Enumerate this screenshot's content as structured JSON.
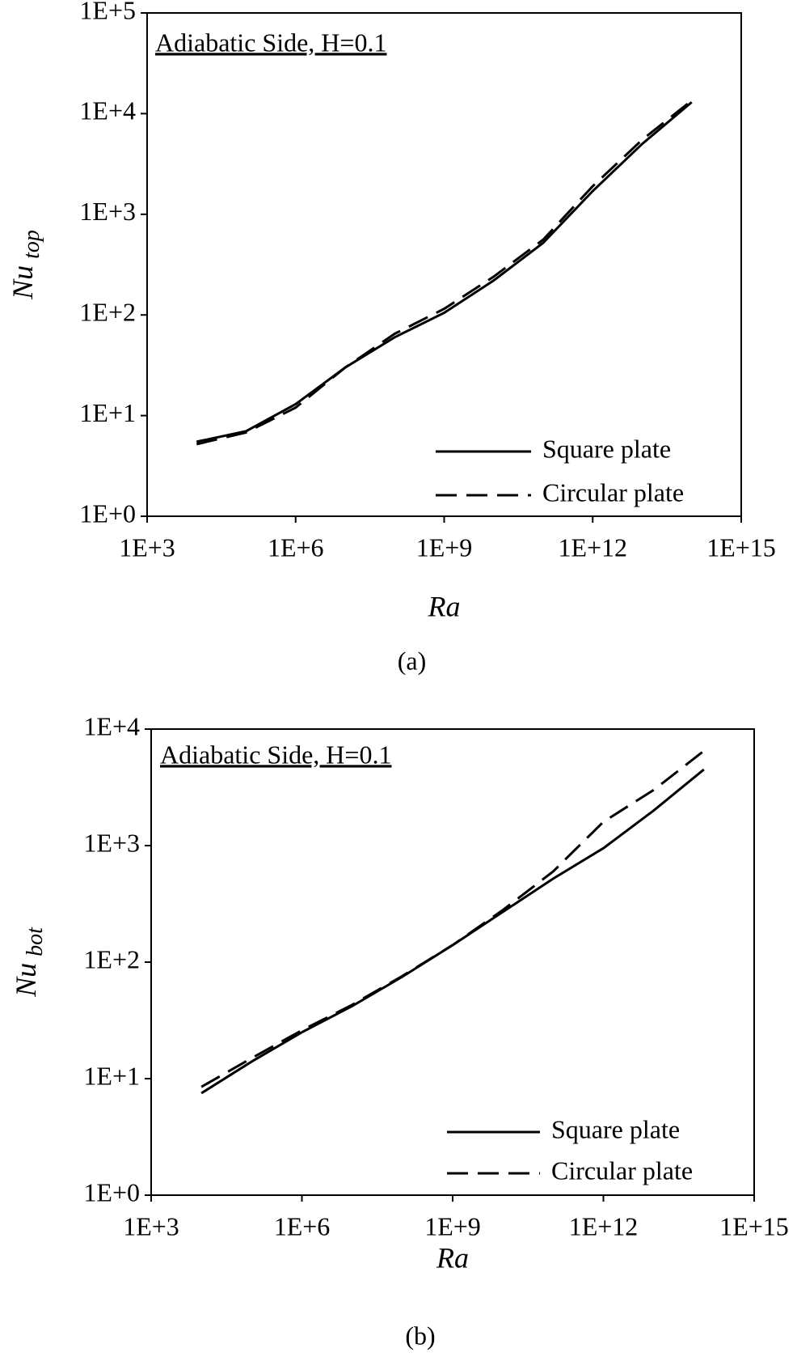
{
  "chart_data": [
    {
      "type": "line",
      "annotation": "Adiabatic Side, H=0.1",
      "x_label": "Ra",
      "y_label": "Nu",
      "y_label_sub": "top",
      "caption": "(a)",
      "log_x": true,
      "log_y": true,
      "legend": "lower right",
      "xlim": [
        1000,
        1000000000000000
      ],
      "ylim": [
        1,
        100000
      ],
      "xticks": [
        {
          "value": 1000,
          "label": "1E+3"
        },
        {
          "value": 1000000,
          "label": "1E+6"
        },
        {
          "value": 1000000000,
          "label": "1E+9"
        },
        {
          "value": 1000000000000,
          "label": "1E+12"
        },
        {
          "value": 1000000000000000,
          "label": "1E+15"
        }
      ],
      "yticks": [
        {
          "value": 1,
          "label": "1E+0"
        },
        {
          "value": 10,
          "label": "1E+1"
        },
        {
          "value": 100,
          "label": "1E+2"
        },
        {
          "value": 1000,
          "label": "1E+3"
        },
        {
          "value": 10000,
          "label": "1E+4"
        },
        {
          "value": 100000,
          "label": "1E+5"
        }
      ],
      "x": [
        10000,
        100000,
        1000000,
        10000000,
        100000000,
        1000000000,
        10000000000,
        100000000000,
        1000000000000,
        10000000000000,
        100000000000000
      ],
      "series": [
        {
          "name": "Square plate",
          "color": "#000000",
          "line_style": "solid",
          "values": [
            5.5,
            7,
            13,
            30,
            60,
            105,
            220,
            520,
            1700,
            5000,
            13000
          ]
        },
        {
          "name": "Circular plate",
          "color": "#000000",
          "line_style": "dashed",
          "values": [
            5.2,
            6.8,
            12,
            30,
            65,
            115,
            240,
            560,
            1900,
            5500,
            13500
          ]
        }
      ]
    },
    {
      "type": "line",
      "annotation": "Adiabatic Side, H=0.1",
      "x_label": "Ra",
      "y_label": "Nu",
      "y_label_sub": "bot",
      "caption": "(b)",
      "log_x": true,
      "log_y": true,
      "legend": "lower right",
      "xlim": [
        1000,
        1000000000000000
      ],
      "ylim": [
        1,
        10000
      ],
      "xticks": [
        {
          "value": 1000,
          "label": "1E+3"
        },
        {
          "value": 1000000,
          "label": "1E+6"
        },
        {
          "value": 1000000000,
          "label": "1E+9"
        },
        {
          "value": 1000000000000,
          "label": "1E+12"
        },
        {
          "value": 1000000000000000,
          "label": "1E+15"
        }
      ],
      "yticks": [
        {
          "value": 1,
          "label": "1E+0"
        },
        {
          "value": 10,
          "label": "1E+1"
        },
        {
          "value": 100,
          "label": "1E+2"
        },
        {
          "value": 1000,
          "label": "1E+3"
        },
        {
          "value": 10000,
          "label": "1E+4"
        }
      ],
      "x": [
        10000,
        100000,
        1000000,
        10000000,
        100000000,
        1000000000,
        10000000000,
        100000000000,
        1000000000000,
        10000000000000,
        100000000000000
      ],
      "series": [
        {
          "name": "Square plate",
          "color": "#000000",
          "line_style": "solid",
          "values": [
            7.5,
            14,
            25,
            42,
            75,
            140,
            270,
            520,
            950,
            2000,
            4500
          ]
        },
        {
          "name": "Circular plate",
          "color": "#000000",
          "line_style": "dashed",
          "values": [
            8.5,
            15,
            26,
            43,
            76,
            140,
            280,
            600,
            1600,
            3000,
            6500
          ]
        }
      ]
    }
  ]
}
